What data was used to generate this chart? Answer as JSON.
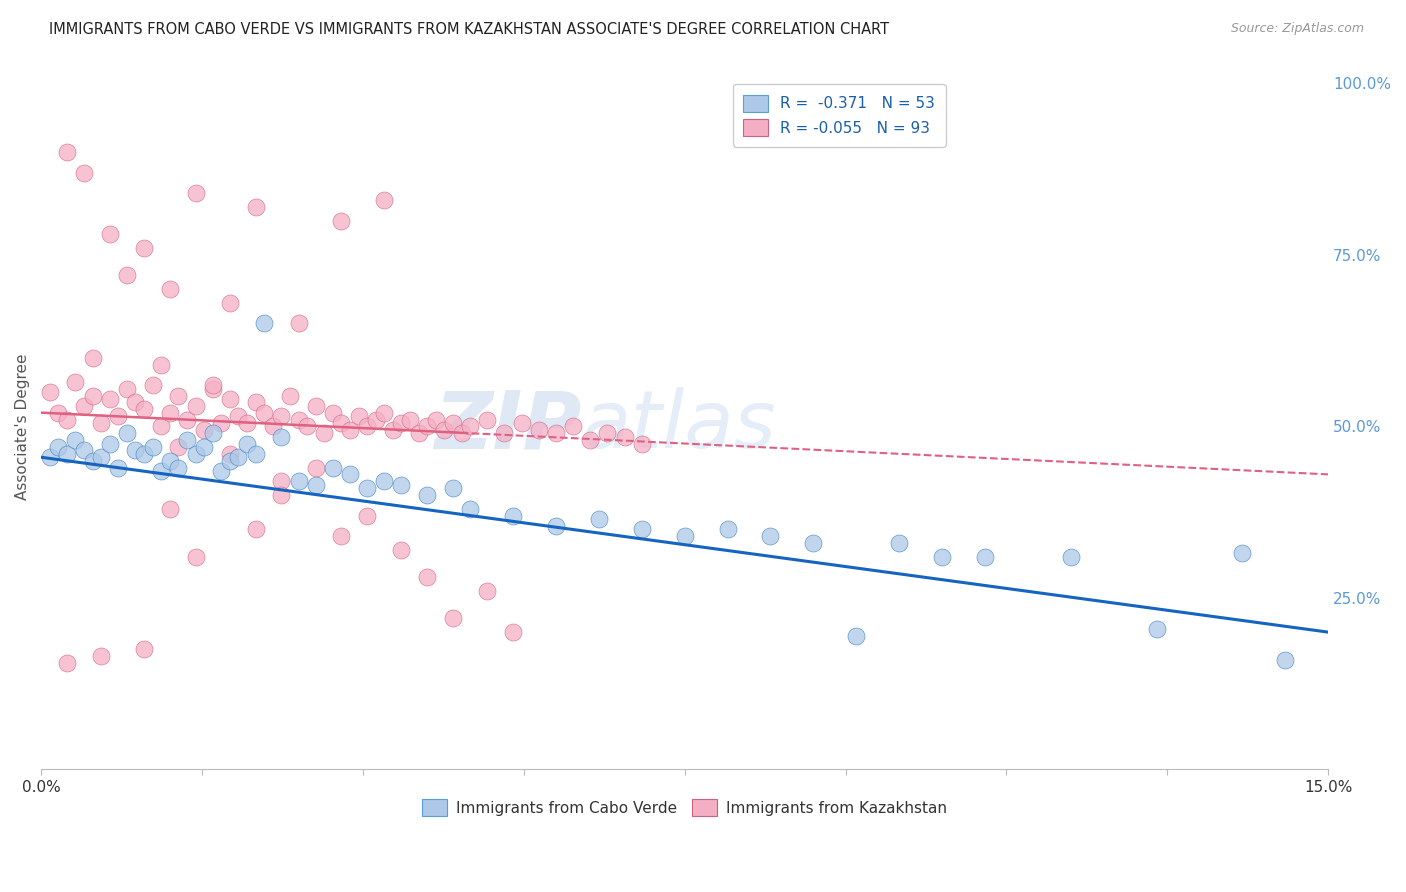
{
  "title": "IMMIGRANTS FROM CABO VERDE VS IMMIGRANTS FROM KAZAKHSTAN ASSOCIATE'S DEGREE CORRELATION CHART",
  "source": "Source: ZipAtlas.com",
  "ylabel": "Associate's Degree",
  "xlim": [
    0.0,
    0.15
  ],
  "ylim": [
    0.0,
    1.0
  ],
  "cabo_verde_R": "-0.371",
  "cabo_verde_N": "53",
  "kazakhstan_R": "-0.055",
  "kazakhstan_N": "93",
  "cabo_verde_color": "#adc8e8",
  "kazakhstan_color": "#f5afc4",
  "cabo_verde_line_color": "#1565c0",
  "kazakhstan_line_color": "#e06080",
  "watermark_zip": "ZIP",
  "watermark_atlas": "atlas",
  "cabo_verde_x": [
    0.001,
    0.002,
    0.003,
    0.004,
    0.005,
    0.006,
    0.007,
    0.008,
    0.009,
    0.01,
    0.011,
    0.012,
    0.013,
    0.014,
    0.015,
    0.016,
    0.017,
    0.018,
    0.019,
    0.02,
    0.021,
    0.022,
    0.023,
    0.024,
    0.025,
    0.026,
    0.028,
    0.03,
    0.032,
    0.034,
    0.036,
    0.038,
    0.04,
    0.042,
    0.045,
    0.048,
    0.05,
    0.055,
    0.06,
    0.065,
    0.07,
    0.075,
    0.08,
    0.085,
    0.09,
    0.095,
    0.1,
    0.105,
    0.11,
    0.12,
    0.13,
    0.14,
    0.145
  ],
  "cabo_verde_y": [
    0.455,
    0.47,
    0.46,
    0.48,
    0.465,
    0.45,
    0.455,
    0.475,
    0.44,
    0.49,
    0.465,
    0.46,
    0.47,
    0.435,
    0.45,
    0.44,
    0.48,
    0.46,
    0.47,
    0.49,
    0.435,
    0.45,
    0.455,
    0.475,
    0.46,
    0.65,
    0.485,
    0.42,
    0.415,
    0.44,
    0.43,
    0.41,
    0.42,
    0.415,
    0.4,
    0.41,
    0.38,
    0.37,
    0.355,
    0.365,
    0.35,
    0.34,
    0.35,
    0.34,
    0.33,
    0.195,
    0.33,
    0.31,
    0.31,
    0.31,
    0.205,
    0.315,
    0.16
  ],
  "kazakhstan_x": [
    0.001,
    0.002,
    0.003,
    0.004,
    0.005,
    0.006,
    0.007,
    0.008,
    0.009,
    0.01,
    0.011,
    0.012,
    0.013,
    0.014,
    0.015,
    0.016,
    0.017,
    0.018,
    0.019,
    0.02,
    0.021,
    0.022,
    0.023,
    0.024,
    0.025,
    0.026,
    0.027,
    0.028,
    0.029,
    0.03,
    0.031,
    0.032,
    0.033,
    0.034,
    0.035,
    0.036,
    0.037,
    0.038,
    0.039,
    0.04,
    0.041,
    0.042,
    0.043,
    0.044,
    0.045,
    0.046,
    0.047,
    0.048,
    0.049,
    0.05,
    0.052,
    0.054,
    0.056,
    0.058,
    0.06,
    0.062,
    0.064,
    0.066,
    0.068,
    0.07,
    0.022,
    0.015,
    0.01,
    0.03,
    0.035,
    0.04,
    0.012,
    0.018,
    0.025,
    0.008,
    0.005,
    0.003,
    0.02,
    0.028,
    0.014,
    0.006,
    0.022,
    0.016,
    0.032,
    0.038,
    0.045,
    0.052,
    0.035,
    0.042,
    0.025,
    0.018,
    0.028,
    0.015,
    0.048,
    0.055,
    0.003,
    0.007,
    0.012
  ],
  "kazakhstan_y": [
    0.55,
    0.52,
    0.51,
    0.565,
    0.53,
    0.545,
    0.505,
    0.54,
    0.515,
    0.555,
    0.535,
    0.525,
    0.56,
    0.5,
    0.52,
    0.545,
    0.51,
    0.53,
    0.495,
    0.555,
    0.505,
    0.54,
    0.515,
    0.505,
    0.535,
    0.52,
    0.5,
    0.515,
    0.545,
    0.51,
    0.5,
    0.53,
    0.49,
    0.52,
    0.505,
    0.495,
    0.515,
    0.5,
    0.51,
    0.52,
    0.495,
    0.505,
    0.51,
    0.49,
    0.5,
    0.51,
    0.495,
    0.505,
    0.49,
    0.5,
    0.51,
    0.49,
    0.505,
    0.495,
    0.49,
    0.5,
    0.48,
    0.49,
    0.485,
    0.475,
    0.68,
    0.7,
    0.72,
    0.65,
    0.8,
    0.83,
    0.76,
    0.84,
    0.82,
    0.78,
    0.87,
    0.9,
    0.56,
    0.42,
    0.59,
    0.6,
    0.46,
    0.47,
    0.44,
    0.37,
    0.28,
    0.26,
    0.34,
    0.32,
    0.35,
    0.31,
    0.4,
    0.38,
    0.22,
    0.2,
    0.155,
    0.165,
    0.175
  ]
}
